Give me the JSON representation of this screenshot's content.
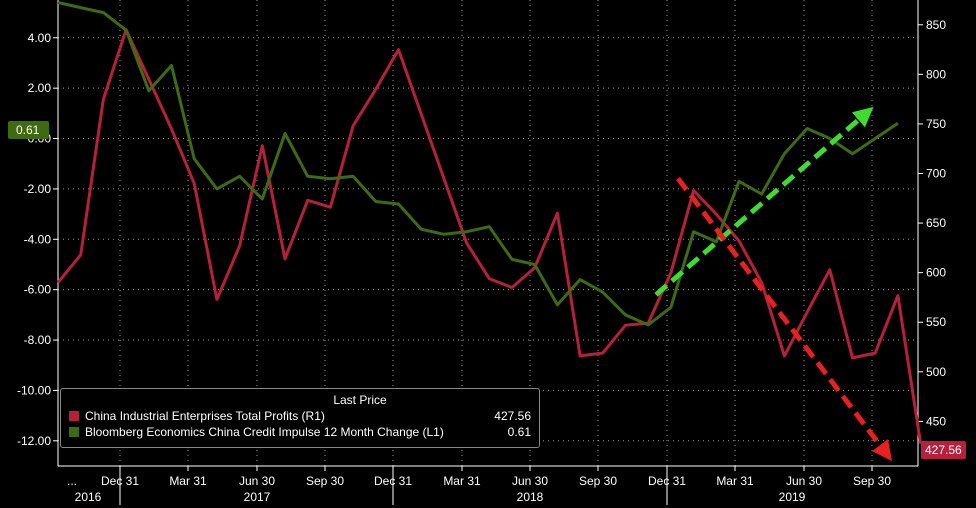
{
  "chart_data": {
    "type": "line",
    "left_axis": {
      "min": -13,
      "max": 5.5,
      "ticks": [
        "4.00",
        "2.00",
        "0.00",
        "-2.00",
        "-4.00",
        "-6.00",
        "-8.00",
        "-10.00",
        "-12.00"
      ]
    },
    "right_axis": {
      "min": 405,
      "max": 875,
      "ticks": [
        "850",
        "800",
        "750",
        "700",
        "650",
        "600",
        "550",
        "500",
        "450"
      ]
    },
    "x_axis": {
      "month_labels": [
        "Dec 31",
        "Mar 31",
        "Jun 30",
        "Sep 30",
        "Dec 31",
        "Mar 31",
        "Jun 30",
        "Sep 30",
        "Dec 31",
        "Mar 31",
        "Jun 30",
        "Sep 30"
      ],
      "year_labels": [
        "2016",
        "2017",
        "2018",
        "2019"
      ],
      "first_label": "..."
    },
    "series": [
      {
        "name": "China Industrial Enterprises Total Profits  (R1)",
        "axis": "right",
        "color": "#b5213b",
        "values": [
          590,
          618,
          775,
          845,
          795,
          745,
          690,
          573,
          627,
          728,
          614,
          673,
          666,
          748,
          785,
          825,
          760,
          695,
          630,
          594,
          585,
          605,
          660,
          516,
          519,
          547,
          549,
          600,
          683,
          659,
          632,
          590,
          516,
          560,
          603,
          514,
          519,
          577,
          427.56
        ]
      },
      {
        "name": "Bloomberg Economics China Credit Impulse 12 Month Change  (L1)",
        "axis": "left",
        "color": "#3f6b10",
        "values": [
          5.4,
          5.2,
          5.0,
          4.3,
          1.9,
          2.9,
          -0.8,
          -2.0,
          -1.5,
          -2.4,
          0.2,
          -1.5,
          -1.6,
          -1.5,
          -2.5,
          -2.6,
          -3.6,
          -3.8,
          -3.7,
          -3.5,
          -4.8,
          -5.0,
          -6.6,
          -5.6,
          -6.1,
          -7.0,
          -7.4,
          -6.7,
          -3.7,
          -4.1,
          -1.7,
          -2.2,
          -0.6,
          0.4,
          0.0,
          -0.6,
          0.0,
          0.61
        ]
      }
    ],
    "legend": {
      "header": "Last Price",
      "placement": "bottom-left",
      "items": [
        {
          "label": "China Industrial Enterprises Total Profits  (R1)",
          "value": "427.56",
          "color": "#b5213b"
        },
        {
          "label": "Bloomberg Economics China Credit Impulse 12 Month Change  (L1)",
          "value": "0.61",
          "color": "#3f6b10"
        }
      ]
    },
    "last_value_tags": {
      "left": "0.61",
      "right": "427.56"
    },
    "annotations": [
      {
        "kind": "dashed-arrow",
        "color": "#3ddc2f",
        "from_value": [
          -6.2,
          "left"
        ],
        "to_value": [
          1.0,
          "left"
        ]
      },
      {
        "kind": "dashed-arrow",
        "color": "#e82020",
        "from_value": [
          695,
          "right"
        ],
        "to_value": [
          418,
          "right"
        ]
      }
    ],
    "grid": true
  }
}
